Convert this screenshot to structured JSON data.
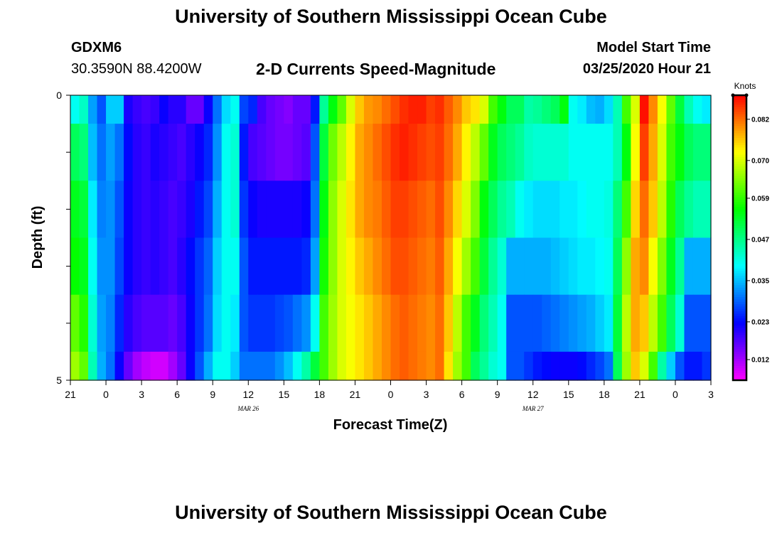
{
  "header": {
    "title": "University of Southern Mississippi Ocean Cube",
    "station": "GDXM6",
    "coords": "30.3590N 88.4200W",
    "subtitle": "2-D Currents Speed-Magnitude",
    "model_start_label": "Model Start Time",
    "model_start_value": "03/25/2020 Hour 21",
    "footer_title": "University of Southern Mississippi Ocean Cube"
  },
  "chart_data": {
    "type": "heatmap",
    "title": "2-D Currents Speed-Magnitude",
    "xlabel": "Forecast Time(Z)",
    "ylabel": "Depth (ft)",
    "x_ticks": [
      "21",
      "0",
      "3",
      "6",
      "9",
      "12",
      "15",
      "18",
      "21",
      "0",
      "3",
      "6",
      "9",
      "12",
      "15",
      "18",
      "21",
      "0",
      "3"
    ],
    "date_labels": [
      {
        "text": "MAR  26",
        "tick_index": 5
      },
      {
        "text": "MAR  27",
        "tick_index": 13
      }
    ],
    "y_ticks": [
      "0",
      "5"
    ],
    "ylim": [
      0,
      5
    ],
    "x_hours": [
      0,
      54
    ],
    "colorbar": {
      "unit": "Knots",
      "range": [
        0.006,
        0.089
      ],
      "ticks": [
        "0.082",
        "0.070",
        "0.059",
        "0.047",
        "0.035",
        "0.023",
        "0.012"
      ],
      "tick_values": [
        0.082,
        0.07,
        0.059,
        0.047,
        0.035,
        0.023,
        0.012
      ]
    },
    "rows": [
      {
        "depth_from": 0.0,
        "depth_to": 0.5,
        "values": [
          0.04,
          0.043,
          0.033,
          0.028,
          0.036,
          0.036,
          0.021,
          0.019,
          0.018,
          0.019,
          0.022,
          0.02,
          0.02,
          0.016,
          0.016,
          0.022,
          0.03,
          0.037,
          0.04,
          0.027,
          0.025,
          0.018,
          0.016,
          0.015,
          0.014,
          0.016,
          0.016,
          0.024,
          0.046,
          0.055,
          0.062,
          0.07,
          0.076,
          0.079,
          0.08,
          0.082,
          0.084,
          0.086,
          0.087,
          0.087,
          0.085,
          0.086,
          0.083,
          0.08,
          0.076,
          0.074,
          0.07,
          0.06,
          0.055,
          0.05,
          0.05,
          0.045,
          0.046,
          0.048,
          0.05,
          0.055,
          0.04,
          0.038,
          0.035,
          0.034,
          0.037,
          0.044,
          0.06,
          0.07,
          0.088,
          0.08,
          0.072,
          0.062,
          0.052,
          0.044,
          0.04,
          0.038
        ]
      },
      {
        "depth_from": 0.5,
        "depth_to": 1.5,
        "values": [
          0.05,
          0.048,
          0.035,
          0.03,
          0.033,
          0.03,
          0.023,
          0.02,
          0.019,
          0.021,
          0.02,
          0.019,
          0.018,
          0.02,
          0.022,
          0.025,
          0.032,
          0.04,
          0.042,
          0.024,
          0.018,
          0.017,
          0.016,
          0.015,
          0.015,
          0.016,
          0.017,
          0.028,
          0.052,
          0.063,
          0.068,
          0.073,
          0.078,
          0.08,
          0.082,
          0.084,
          0.086,
          0.087,
          0.086,
          0.085,
          0.084,
          0.085,
          0.082,
          0.078,
          0.073,
          0.068,
          0.062,
          0.054,
          0.05,
          0.048,
          0.046,
          0.043,
          0.042,
          0.042,
          0.042,
          0.042,
          0.04,
          0.04,
          0.04,
          0.04,
          0.04,
          0.044,
          0.055,
          0.072,
          0.085,
          0.078,
          0.07,
          0.06,
          0.055,
          0.05,
          0.048,
          0.048
        ]
      },
      {
        "depth_from": 1.5,
        "depth_to": 2.5,
        "values": [
          0.054,
          0.052,
          0.038,
          0.031,
          0.032,
          0.028,
          0.022,
          0.02,
          0.019,
          0.02,
          0.019,
          0.018,
          0.019,
          0.021,
          0.024,
          0.027,
          0.034,
          0.04,
          0.042,
          0.026,
          0.022,
          0.021,
          0.021,
          0.021,
          0.021,
          0.021,
          0.022,
          0.03,
          0.055,
          0.065,
          0.07,
          0.074,
          0.078,
          0.08,
          0.081,
          0.083,
          0.085,
          0.085,
          0.084,
          0.083,
          0.082,
          0.084,
          0.08,
          0.075,
          0.07,
          0.064,
          0.055,
          0.05,
          0.046,
          0.044,
          0.04,
          0.038,
          0.037,
          0.037,
          0.037,
          0.038,
          0.038,
          0.039,
          0.04,
          0.04,
          0.041,
          0.048,
          0.06,
          0.075,
          0.082,
          0.076,
          0.068,
          0.058,
          0.05,
          0.046,
          0.044,
          0.044
        ]
      },
      {
        "depth_from": 2.5,
        "depth_to": 3.5,
        "values": [
          0.056,
          0.054,
          0.04,
          0.032,
          0.032,
          0.027,
          0.022,
          0.02,
          0.019,
          0.02,
          0.019,
          0.018,
          0.02,
          0.023,
          0.026,
          0.029,
          0.036,
          0.04,
          0.04,
          0.028,
          0.024,
          0.024,
          0.024,
          0.024,
          0.024,
          0.024,
          0.025,
          0.033,
          0.057,
          0.065,
          0.07,
          0.073,
          0.076,
          0.078,
          0.08,
          0.082,
          0.084,
          0.084,
          0.083,
          0.082,
          0.081,
          0.083,
          0.078,
          0.072,
          0.066,
          0.06,
          0.052,
          0.046,
          0.042,
          0.034,
          0.034,
          0.034,
          0.034,
          0.034,
          0.035,
          0.036,
          0.037,
          0.038,
          0.038,
          0.039,
          0.04,
          0.05,
          0.065,
          0.078,
          0.08,
          0.072,
          0.064,
          0.054,
          0.046,
          0.034,
          0.034,
          0.034
        ]
      },
      {
        "depth_from": 3.5,
        "depth_to": 4.5,
        "values": [
          0.062,
          0.058,
          0.042,
          0.033,
          0.031,
          0.025,
          0.02,
          0.018,
          0.017,
          0.017,
          0.017,
          0.016,
          0.018,
          0.022,
          0.026,
          0.03,
          0.037,
          0.04,
          0.038,
          0.028,
          0.026,
          0.026,
          0.026,
          0.027,
          0.028,
          0.03,
          0.032,
          0.04,
          0.06,
          0.066,
          0.07,
          0.072,
          0.074,
          0.076,
          0.078,
          0.08,
          0.082,
          0.083,
          0.082,
          0.081,
          0.08,
          0.082,
          0.076,
          0.068,
          0.06,
          0.054,
          0.048,
          0.044,
          0.04,
          0.028,
          0.028,
          0.028,
          0.028,
          0.029,
          0.03,
          0.031,
          0.032,
          0.033,
          0.034,
          0.036,
          0.038,
          0.052,
          0.068,
          0.078,
          0.076,
          0.068,
          0.06,
          0.05,
          0.042,
          0.028,
          0.028,
          0.028
        ]
      },
      {
        "depth_from": 4.5,
        "depth_to": 5.0,
        "values": [
          0.066,
          0.062,
          0.044,
          0.034,
          0.03,
          0.022,
          0.016,
          0.012,
          0.01,
          0.009,
          0.009,
          0.012,
          0.016,
          0.022,
          0.028,
          0.034,
          0.04,
          0.04,
          0.036,
          0.03,
          0.03,
          0.03,
          0.03,
          0.032,
          0.035,
          0.04,
          0.045,
          0.052,
          0.06,
          0.066,
          0.07,
          0.072,
          0.074,
          0.076,
          0.078,
          0.08,
          0.082,
          0.083,
          0.082,
          0.081,
          0.08,
          0.082,
          0.074,
          0.066,
          0.06,
          0.05,
          0.046,
          0.042,
          0.04,
          0.028,
          0.028,
          0.026,
          0.024,
          0.023,
          0.022,
          0.022,
          0.022,
          0.023,
          0.025,
          0.027,
          0.03,
          0.05,
          0.066,
          0.076,
          0.07,
          0.06,
          0.045,
          0.036,
          0.028,
          0.024,
          0.024,
          0.026
        ]
      }
    ]
  }
}
